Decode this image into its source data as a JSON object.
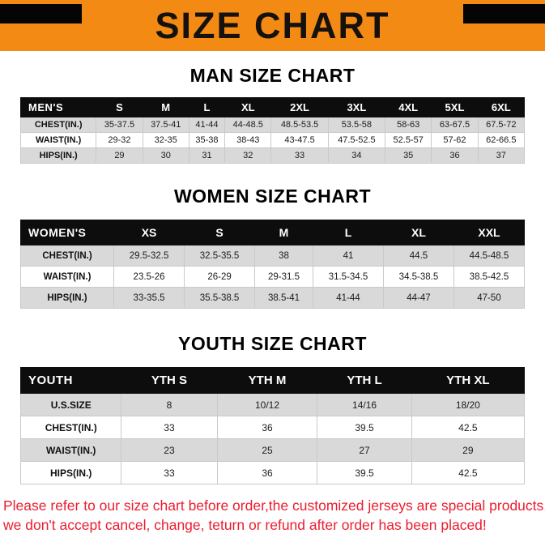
{
  "banner": {
    "title": "SIZE CHART"
  },
  "colors": {
    "banner_bg": "#F28A13",
    "table_header_bg": "#0D0D0D",
    "row_stripe": "#D9D9D9",
    "footer_text": "#EC1C2E"
  },
  "sections": [
    {
      "heading": "MAN SIZE CHART",
      "table": {
        "header": [
          "MEN'S",
          "S",
          "M",
          "L",
          "XL",
          "2XL",
          "3XL",
          "4XL",
          "5XL",
          "6XL"
        ],
        "rows": [
          [
            "CHEST(IN.)",
            "35-37.5",
            "37.5-41",
            "41-44",
            "44-48.5",
            "48.5-53.5",
            "53.5-58",
            "58-63",
            "63-67.5",
            "67.5-72"
          ],
          [
            "WAIST(IN.)",
            "29-32",
            "32-35",
            "35-38",
            "38-43",
            "43-47.5",
            "47.5-52.5",
            "52.5-57",
            "57-62",
            "62-66.5"
          ],
          [
            "HIPS(IN.)",
            "29",
            "30",
            "31",
            "32",
            "33",
            "34",
            "35",
            "36",
            "37"
          ]
        ]
      }
    },
    {
      "heading": "WOMEN SIZE CHART",
      "table": {
        "header": [
          "WOMEN'S",
          "XS",
          "S",
          "M",
          "L",
          "XL",
          "XXL"
        ],
        "rows": [
          [
            "CHEST(IN.)",
            "29.5-32.5",
            "32.5-35.5",
            "38",
            "41",
            "44.5",
            "44.5-48.5"
          ],
          [
            "WAIST(IN.)",
            "23.5-26",
            "26-29",
            "29-31.5",
            "31.5-34.5",
            "34.5-38.5",
            "38.5-42.5"
          ],
          [
            "HIPS(IN.)",
            "33-35.5",
            "35.5-38.5",
            "38.5-41",
            "41-44",
            "44-47",
            "47-50"
          ]
        ]
      }
    },
    {
      "heading": "YOUTH SIZE CHART",
      "table": {
        "header": [
          "YOUTH",
          "YTH S",
          "YTH M",
          "YTH L",
          "YTH XL"
        ],
        "rows": [
          [
            "U.S.SIZE",
            "8",
            "10/12",
            "14/16",
            "18/20"
          ],
          [
            "CHEST(IN.)",
            "33",
            "36",
            "39.5",
            "42.5"
          ],
          [
            "WAIST(IN.)",
            "23",
            "25",
            "27",
            "29"
          ],
          [
            "HIPS(IN.)",
            "33",
            "36",
            "39.5",
            "42.5"
          ]
        ]
      }
    }
  ],
  "footer": {
    "line1": "Please refer to our size chart before order,the customized jerseys are special products,",
    "line2": "we don't accept cancel, change, teturn or refund after order has been placed!"
  }
}
